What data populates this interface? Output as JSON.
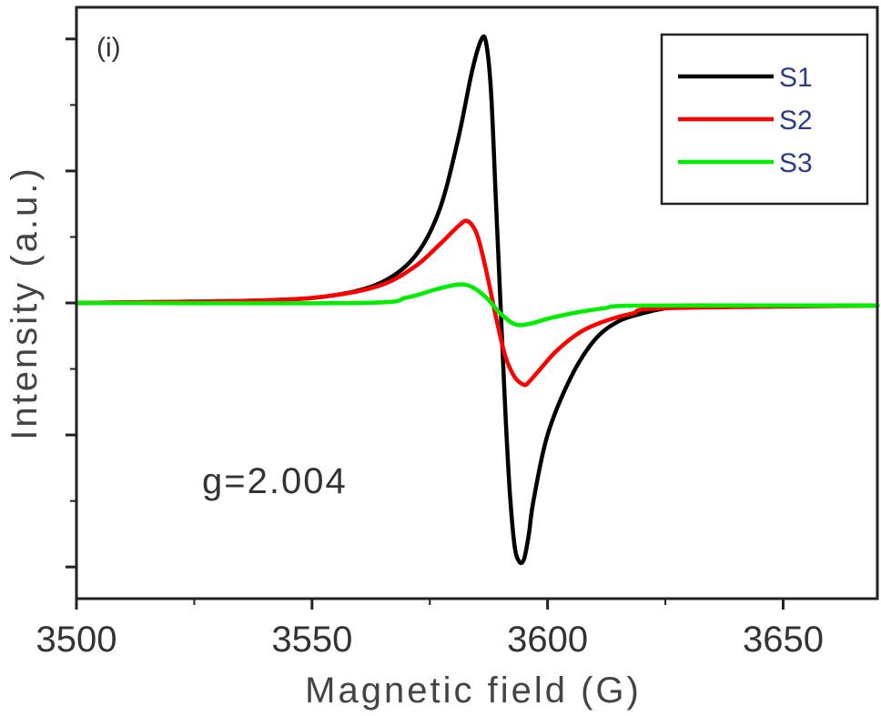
{
  "chart_data": {
    "type": "line",
    "panel_label": "(i)",
    "xlabel": "Magnetic field (G)",
    "ylabel": "Intensity (a.u.)",
    "xlim": [
      3500,
      3670
    ],
    "ylim": [
      -1.12,
      1.12
    ],
    "x_ticks": [
      3500,
      3550,
      3600,
      3650
    ],
    "y_ticks_unlabeled": [
      -1.0,
      -0.5,
      0,
      0.5,
      1.0
    ],
    "annotation": "g=2.004",
    "legend_position": "top-right",
    "series": [
      {
        "name": "S1",
        "color": "#000000",
        "x": [
          3500,
          3540,
          3555,
          3565,
          3572,
          3577,
          3581,
          3584,
          3586,
          3587,
          3588,
          3589,
          3590,
          3591,
          3592,
          3593,
          3594,
          3595,
          3596,
          3597,
          3600,
          3605,
          3610,
          3615,
          3620,
          3625,
          3630,
          3670
        ],
        "y": [
          0,
          0.01,
          0.03,
          0.08,
          0.18,
          0.35,
          0.62,
          0.88,
          1.0,
          0.98,
          0.8,
          0.4,
          0.0,
          -0.4,
          -0.72,
          -0.92,
          -0.98,
          -0.97,
          -0.88,
          -0.75,
          -0.5,
          -0.28,
          -0.14,
          -0.07,
          -0.04,
          -0.02,
          -0.01,
          -0.01
        ]
      },
      {
        "name": "S2",
        "color": "#ff0000",
        "x": [
          3500,
          3540,
          3555,
          3565,
          3572,
          3577,
          3581,
          3583,
          3585,
          3587,
          3589,
          3591,
          3593,
          3595,
          3596,
          3598,
          3602,
          3607,
          3612,
          3618,
          3625,
          3670
        ],
        "y": [
          0,
          0.01,
          0.03,
          0.07,
          0.14,
          0.22,
          0.29,
          0.31,
          0.26,
          0.12,
          -0.05,
          -0.2,
          -0.28,
          -0.31,
          -0.3,
          -0.26,
          -0.18,
          -0.11,
          -0.07,
          -0.04,
          -0.02,
          -0.01
        ]
      },
      {
        "name": "S3",
        "color": "#00ee00",
        "x": [
          3500,
          3560,
          3570,
          3576,
          3581,
          3584,
          3587,
          3590,
          3593,
          3596,
          3600,
          3605,
          3612,
          3620,
          3670
        ],
        "y": [
          0,
          0.0,
          0.02,
          0.05,
          0.07,
          0.06,
          0.02,
          -0.04,
          -0.08,
          -0.08,
          -0.06,
          -0.04,
          -0.02,
          -0.01,
          -0.01
        ]
      }
    ]
  }
}
